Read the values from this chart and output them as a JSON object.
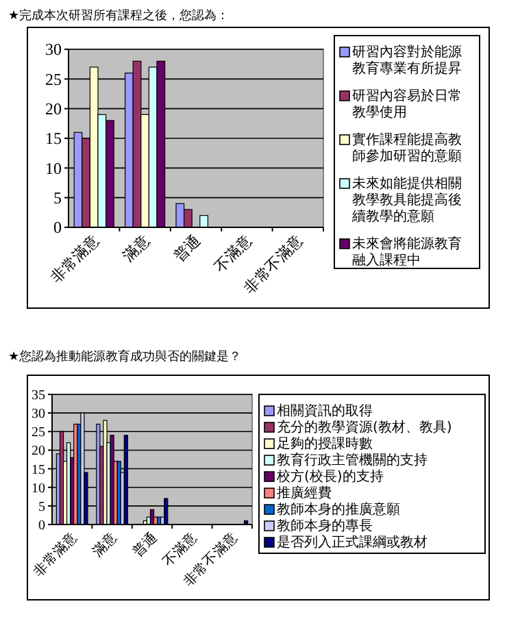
{
  "chart_data": [
    {
      "type": "bar",
      "title": "★完成本次研習所有課程之後，您認為：",
      "categories": [
        "非常滿意",
        "滿意",
        "普通",
        "不滿意",
        "非常不滿意"
      ],
      "ylim": [
        0,
        30
      ],
      "yticks": [
        0,
        5,
        10,
        15,
        20,
        25,
        30
      ],
      "grid": "y",
      "legend": "right",
      "series": [
        {
          "name": "研習內容對於能源教育專業有所提昇",
          "color": "#9999ff",
          "values": [
            16,
            26,
            4,
            0,
            0
          ]
        },
        {
          "name": "研習內容易於日常教學使用",
          "color": "#993366",
          "values": [
            15,
            28,
            3,
            0,
            0
          ]
        },
        {
          "name": "實作課程能提高教師參加研習的意願",
          "color": "#ffffcc",
          "values": [
            27,
            19,
            0,
            0,
            0
          ]
        },
        {
          "name": "未來如能提供相關教學教具能提高後續教學的意願",
          "color": "#ccffff",
          "values": [
            19,
            27,
            2,
            0,
            0
          ]
        },
        {
          "name": "未來會將能源教育融入課程中",
          "color": "#660066",
          "values": [
            18,
            28,
            0,
            0,
            0
          ]
        }
      ]
    },
    {
      "type": "bar",
      "title": "★您認為推動能源教育成功與否的關鍵是？",
      "categories": [
        "非常滿意",
        "滿意",
        "普通",
        "不滿意",
        "非常不滿意"
      ],
      "ylim": [
        0,
        35
      ],
      "yticks": [
        0,
        5,
        10,
        15,
        20,
        25,
        30,
        35
      ],
      "grid": "y",
      "legend": "right",
      "series": [
        {
          "name": "相關資訊的取得",
          "color": "#9999ff",
          "values": [
            19,
            27,
            0,
            0,
            0
          ]
        },
        {
          "name": "充分的教學資源(教材、教具)",
          "color": "#993366",
          "values": [
            25,
            21,
            0,
            0,
            0
          ]
        },
        {
          "name": "足夠的授課時數",
          "color": "#ffffcc",
          "values": [
            17,
            28,
            1,
            0,
            0
          ]
        },
        {
          "name": "教育行政主管機關的支持",
          "color": "#ccffff",
          "values": [
            22,
            22,
            2,
            0,
            0
          ]
        },
        {
          "name": "校方(校長)的支持",
          "color": "#660066",
          "values": [
            18,
            24,
            4,
            0,
            0
          ]
        },
        {
          "name": "推廣經費",
          "color": "#ff8080",
          "values": [
            27,
            17,
            2,
            0,
            0
          ]
        },
        {
          "name": "教師本身的推廣意願",
          "color": "#0066cc",
          "values": [
            27,
            17,
            2,
            0,
            0
          ]
        },
        {
          "name": "教師本身的專長",
          "color": "#ccccff",
          "values": [
            30,
            14,
            2,
            0,
            0
          ]
        },
        {
          "name": "是否列入正式課綱或教材",
          "color": "#000080",
          "values": [
            14,
            24,
            7,
            0,
            1
          ]
        }
      ]
    }
  ]
}
